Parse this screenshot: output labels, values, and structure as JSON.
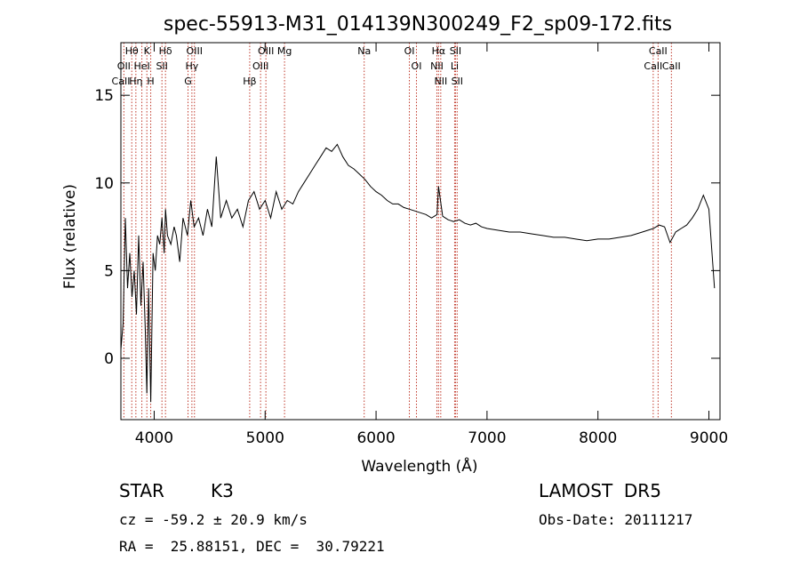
{
  "chart_data": {
    "type": "line",
    "title": "spec-55913-M31_014139N300249_F2_sp09-172.fits",
    "xlabel": "Wavelength (Å)",
    "ylabel": "Flux (relative)",
    "xlim": [
      3700,
      9100
    ],
    "ylim": [
      -3.5,
      18
    ],
    "xticks": [
      4000,
      5000,
      6000,
      7000,
      8000,
      9000
    ],
    "yticks": [
      0,
      5,
      10,
      15
    ],
    "grid": false,
    "spectral_lines": [
      {
        "label": "Hθ",
        "x": 3798
      },
      {
        "label": "OII",
        "x": 3727
      },
      {
        "label": "CaII",
        "x": 3700
      },
      {
        "label": "K",
        "x": 3934
      },
      {
        "label": "HeI",
        "x": 3889
      },
      {
        "label": "Hη",
        "x": 3835
      },
      {
        "label": "H",
        "x": 3969
      },
      {
        "label": "Hδ",
        "x": 4102
      },
      {
        "label": "SII",
        "x": 4070
      },
      {
        "label": "OIII",
        "x": 4363
      },
      {
        "label": "Hγ",
        "x": 4340
      },
      {
        "label": "G",
        "x": 4305
      },
      {
        "label": "OIII",
        "x": 5007
      },
      {
        "label": "OIII",
        "x": 4959
      },
      {
        "label": "Hβ",
        "x": 4861
      },
      {
        "label": "Mg",
        "x": 5175
      },
      {
        "label": "Na",
        "x": 5893
      },
      {
        "label": "OI",
        "x": 6300
      },
      {
        "label": "OI",
        "x": 6364
      },
      {
        "label": "Hα",
        "x": 6563
      },
      {
        "label": "NII",
        "x": 6548
      },
      {
        "label": "NII",
        "x": 6583
      },
      {
        "label": "SII",
        "x": 6716
      },
      {
        "label": "Li",
        "x": 6708
      },
      {
        "label": "SII",
        "x": 6731
      },
      {
        "label": "CaII",
        "x": 8542
      },
      {
        "label": "CaII",
        "x": 8498
      },
      {
        "label": "CaII",
        "x": 8662
      }
    ],
    "series": [
      {
        "x": [
          3700,
          3720,
          3740,
          3760,
          3780,
          3800,
          3820,
          3840,
          3860,
          3880,
          3900,
          3920,
          3934,
          3950,
          3969,
          3990,
          4010,
          4030,
          4050,
          4070,
          4090,
          4102,
          4120,
          4150,
          4180,
          4200,
          4230,
          4260,
          4300,
          4330,
          4360,
          4400,
          4440,
          4480,
          4520,
          4560,
          4600,
          4650,
          4700,
          4750,
          4800,
          4850,
          4900,
          4950,
          5000,
          5050,
          5100,
          5150,
          5200,
          5250,
          5300,
          5350,
          5400,
          5450,
          5500,
          5550,
          5600,
          5650,
          5700,
          5750,
          5800,
          5850,
          5900,
          5950,
          6000,
          6050,
          6100,
          6150,
          6200,
          6250,
          6300,
          6350,
          6400,
          6450,
          6500,
          6550,
          6563,
          6600,
          6650,
          6700,
          6750,
          6800,
          6850,
          6900,
          6950,
          7000,
          7100,
          7200,
          7300,
          7400,
          7500,
          7600,
          7700,
          7800,
          7900,
          8000,
          8100,
          8200,
          8300,
          8400,
          8500,
          8550,
          8600,
          8650,
          8700,
          8750,
          8800,
          8850,
          8900,
          8950,
          9000,
          9050
        ],
        "y": [
          0.5,
          2,
          8,
          4,
          6,
          3.5,
          5,
          2.5,
          7,
          3,
          5.5,
          1.5,
          -2,
          4,
          -2.5,
          6,
          5,
          7,
          6.5,
          8,
          6,
          8.5,
          7,
          6.5,
          7.5,
          7,
          5.5,
          8,
          7,
          9,
          7.5,
          8,
          7,
          8.5,
          7.5,
          11.5,
          8,
          9,
          8,
          8.5,
          7.5,
          9,
          9.5,
          8.5,
          9,
          8,
          9.5,
          8.5,
          9,
          8.8,
          9.5,
          10,
          10.5,
          11,
          11.5,
          12,
          11.8,
          12.2,
          11.5,
          11,
          10.8,
          10.5,
          10.2,
          9.8,
          9.5,
          9.3,
          9,
          8.8,
          8.8,
          8.6,
          8.5,
          8.4,
          8.3,
          8.2,
          8,
          8.2,
          9.8,
          8.1,
          7.9,
          7.8,
          7.9,
          7.7,
          7.6,
          7.7,
          7.5,
          7.4,
          7.3,
          7.2,
          7.2,
          7.1,
          7.0,
          6.9,
          6.9,
          6.8,
          6.7,
          6.8,
          6.8,
          6.9,
          7.0,
          7.2,
          7.4,
          7.6,
          7.5,
          6.6,
          7.2,
          7.4,
          7.6,
          8,
          8.5,
          9.3,
          8.5,
          4
        ]
      }
    ]
  },
  "info": {
    "object_class": "STAR",
    "subclass": "K3",
    "survey": "LAMOST  DR5",
    "cz": "cz = -59.2 ± 20.9 km/s",
    "obs_date": "Obs-Date: 20111217",
    "coords": "RA =  25.88151, DEC =  30.79221"
  }
}
